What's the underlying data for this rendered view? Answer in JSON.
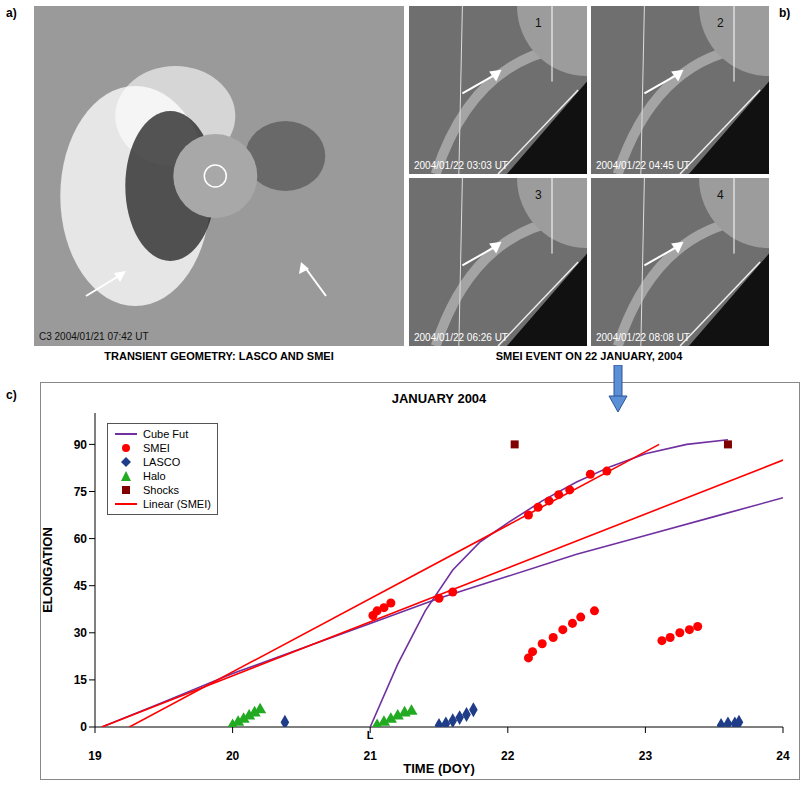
{
  "figure_labels": [
    "a)",
    "b)",
    "c)"
  ],
  "panel_a": {
    "timestamp": "C3 2004/01/21 07:42 UT"
  },
  "panel_b": {
    "frames": [
      {
        "number": "1",
        "timestamp": "2004/01/22 03:03 UT"
      },
      {
        "number": "2",
        "timestamp": "2004/01/22 04:45 UT"
      },
      {
        "number": "3",
        "timestamp": "2004/01/22 06:26 UT"
      },
      {
        "number": "4",
        "timestamp": "2004/01/22 08:08 UT"
      }
    ]
  },
  "captions": [
    "TRANSIENT GEOMETRY: LASCO AND SMEI",
    "SMEI EVENT ON 22 JANUARY, 2004"
  ],
  "chart_data": {
    "type": "scatter",
    "title": "JANUARY 2004",
    "x_label": "TIME (DOY)",
    "y_label": "ELONGATION",
    "xlim": [
      19,
      24
    ],
    "xticks": [
      19,
      20,
      21,
      22,
      23,
      24
    ],
    "ylim": [
      0,
      100
    ],
    "yticks": [
      0,
      15,
      30,
      45,
      60,
      75,
      90
    ],
    "legend": "upper left",
    "annotations": [
      {
        "text": "L",
        "x": 21,
        "y": 0
      }
    ],
    "series": [
      {
        "name": "Cube Fut",
        "type": "line",
        "color": "#7030a0",
        "line_style": "solid",
        "x": [
          19.05,
          19.5,
          20,
          20.5,
          21,
          21.5,
          22,
          22.5,
          23,
          23.5,
          24,
          null,
          21.0,
          21.2,
          21.4,
          21.6,
          21.8,
          22,
          22.25,
          22.5,
          22.75,
          23,
          23.3,
          23.6
        ],
        "y": [
          0,
          8,
          17,
          25,
          33,
          41,
          48,
          55,
          61,
          67,
          73,
          null,
          0,
          20,
          37,
          50,
          59,
          65,
          72,
          78,
          83,
          87,
          90,
          91.5
        ]
      },
      {
        "name": "SMEI",
        "type": "scatter",
        "color": "#ff0000",
        "marker": "circle",
        "x": [
          21.02,
          21.05,
          21.1,
          21.15,
          21.5,
          21.6,
          22.15,
          22.22,
          22.3,
          22.37,
          22.45,
          22.6,
          22.72,
          22.15,
          22.18,
          22.25,
          22.33,
          22.4,
          22.47,
          22.53,
          22.63,
          23.12,
          23.18,
          23.25,
          23.32,
          23.38
        ],
        "y": [
          35.5,
          37,
          38,
          39.5,
          41,
          43,
          67.5,
          70,
          72,
          74,
          75.5,
          80.5,
          81.5,
          22,
          24,
          26.5,
          28.5,
          31,
          33,
          35,
          37,
          27.5,
          28.5,
          30,
          31,
          32
        ]
      },
      {
        "name": "LASCO",
        "type": "scatter",
        "color": "#1f3c88",
        "marker": "diamond",
        "x": [
          20.38,
          21.5,
          21.55,
          21.6,
          21.65,
          21.7,
          21.75,
          23.55,
          23.6,
          23.65,
          23.68
        ],
        "y": [
          1.5,
          0.5,
          1,
          2,
          3,
          4,
          5.5,
          0.5,
          1,
          1,
          1.5
        ]
      },
      {
        "name": "Halo",
        "type": "scatter",
        "color": "#22aa22",
        "marker": "triangle",
        "x": [
          20.0,
          20.04,
          20.08,
          20.12,
          20.16,
          20.2,
          21.05,
          21.1,
          21.15,
          21.2,
          21.25,
          21.3
        ],
        "y": [
          0.5,
          1.5,
          2.5,
          3.5,
          4.5,
          5.5,
          0.5,
          1.5,
          2.5,
          3.5,
          4.5,
          5
        ]
      },
      {
        "name": "Shocks",
        "type": "scatter",
        "color": "#800000",
        "marker": "square",
        "x": [
          22.05,
          23.6
        ],
        "y": [
          90,
          90
        ]
      },
      {
        "name": "Linear (SMEI)",
        "type": "line",
        "color": "#ff0000",
        "line_style": "solid",
        "x": [
          19.05,
          24,
          null,
          19.25,
          23.1
        ],
        "y": [
          0,
          85,
          null,
          0,
          90
        ]
      }
    ]
  }
}
